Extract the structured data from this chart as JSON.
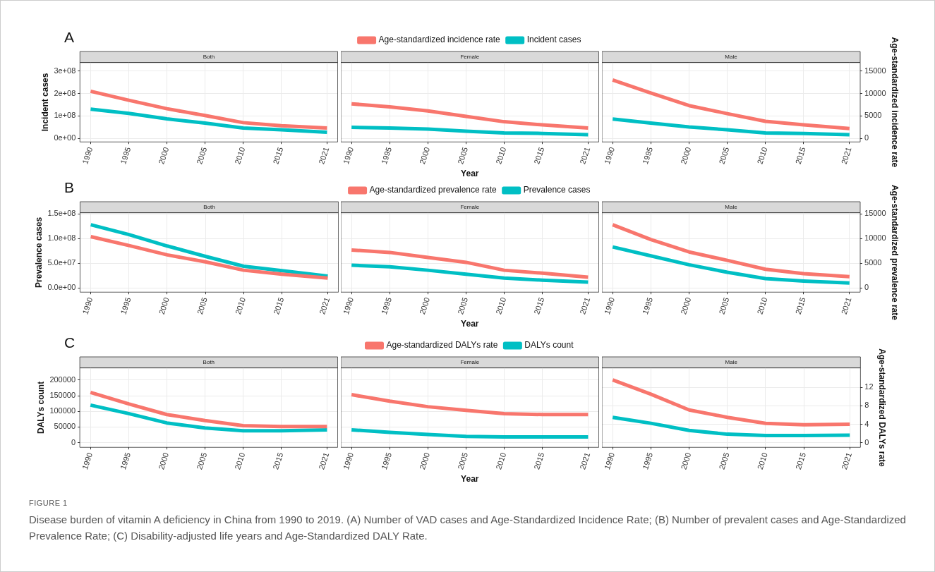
{
  "chart_data": [
    {
      "type": "line",
      "title": "Both",
      "x": [
        1990,
        1995,
        2000,
        2005,
        2010,
        2015,
        2021
      ],
      "xlim": [
        1988.6,
        2022.4
      ],
      "xticks": [
        1990,
        1995,
        2000,
        2005,
        2010,
        2015,
        2021
      ],
      "ylim": [
        -16000000,
        338000000
      ],
      "yticks": [
        {
          "value": 0,
          "label": "0e+00"
        },
        {
          "value": 100000000,
          "label": "1e+08"
        },
        {
          "value": 200000000,
          "label": "2e+08"
        },
        {
          "value": 300000000,
          "label": "3e+08"
        }
      ],
      "y2lim": [
        -800,
        16900
      ],
      "ylabel": "Incident cases",
      "tick_labels": "xy",
      "grid": true,
      "legend": false,
      "marker": "none",
      "line_style": "solid",
      "annotations": [
        "A"
      ],
      "series": [
        {
          "color": "#f8766d",
          "axis": "y2",
          "values": [
            10500,
            8500,
            6600,
            5100,
            3500,
            2800,
            2300
          ]
        },
        {
          "color": "#00bfc4",
          "values": [
            130000000,
            111000000,
            87000000,
            68000000,
            46000000,
            38000000,
            27000000
          ]
        }
      ]
    },
    {
      "type": "line",
      "title": "Female",
      "x": [
        1990,
        1995,
        2000,
        2005,
        2010,
        2015,
        2021
      ],
      "xlim": [
        1988.6,
        2022.4
      ],
      "xticks": [
        1990,
        1995,
        2000,
        2005,
        2010,
        2015,
        2021
      ],
      "ylim": [
        -16000000,
        338000000
      ],
      "yticks": [
        0,
        100000000,
        200000000,
        300000000
      ],
      "y2lim": [
        -800,
        16900
      ],
      "y2ticks": [
        0,
        5000,
        10000,
        15000
      ],
      "xlabel": "Year",
      "tick_labels": "x",
      "grid": true,
      "legend": "top",
      "marker": "none",
      "line_style": "solid",
      "series": [
        {
          "name": "Age-standardized incidence rate",
          "color": "#f8766d",
          "axis": "y2",
          "values": [
            7700,
            7000,
            6100,
            4900,
            3700,
            3000,
            2300
          ]
        },
        {
          "name": "Incident cases",
          "color": "#00bfc4",
          "values": [
            49000000,
            46000000,
            41000000,
            32000000,
            24000000,
            22000000,
            16000000
          ]
        }
      ]
    },
    {
      "type": "line",
      "title": "Male",
      "x": [
        1990,
        1995,
        2000,
        2005,
        2010,
        2015,
        2021
      ],
      "xlim": [
        1988.6,
        2022.4
      ],
      "xticks": [
        1990,
        1995,
        2000,
        2005,
        2010,
        2015,
        2021
      ],
      "ylim": [
        -16000000,
        338000000
      ],
      "y2lim": [
        -800,
        16900
      ],
      "y2ticks": [
        0,
        5000,
        10000,
        15000
      ],
      "y2label": "Age-standardized incidence rate",
      "tick_labels": "xy2",
      "grid": true,
      "legend": false,
      "marker": "none",
      "line_style": "solid",
      "series": [
        {
          "color": "#f8766d",
          "axis": "y2",
          "values": [
            13000,
            10100,
            7300,
            5500,
            3800,
            3000,
            2200
          ]
        },
        {
          "color": "#00bfc4",
          "values": [
            86000000,
            68000000,
            51000000,
            38000000,
            24000000,
            22000000,
            16000000
          ]
        }
      ]
    },
    {
      "type": "line",
      "title": "Both",
      "x": [
        1990,
        1995,
        2000,
        2005,
        2010,
        2015,
        2021
      ],
      "xlim": [
        1988.6,
        2022.4
      ],
      "xticks": [
        1990,
        1995,
        2000,
        2005,
        2010,
        2015,
        2021
      ],
      "ylim": [
        -8400000,
        152300000
      ],
      "yticks": [
        {
          "value": 0,
          "label": "0.0e+00"
        },
        {
          "value": 50000000,
          "label": "5.0e+07"
        },
        {
          "value": 100000000,
          "label": "1.0e+08"
        },
        {
          "value": 150000000,
          "label": "1.5e+08"
        }
      ],
      "y2lim": [
        -840,
        15230
      ],
      "ylabel": "Prevalence cases",
      "tick_labels": "xy",
      "grid": true,
      "legend": false,
      "marker": "none",
      "line_style": "solid",
      "annotations": [
        "B"
      ],
      "series": [
        {
          "color": "#f8766d",
          "axis": "y2",
          "values": [
            10400,
            8600,
            6700,
            5300,
            3600,
            2800,
            2000
          ]
        },
        {
          "color": "#00bfc4",
          "values": [
            128000000,
            108000000,
            85000000,
            64000000,
            44000000,
            35000000,
            24000000
          ]
        }
      ]
    },
    {
      "type": "line",
      "title": "Female",
      "x": [
        1990,
        1995,
        2000,
        2005,
        2010,
        2015,
        2021
      ],
      "xlim": [
        1988.6,
        2022.4
      ],
      "xticks": [
        1990,
        1995,
        2000,
        2005,
        2010,
        2015,
        2021
      ],
      "ylim": [
        -8400000,
        152300000
      ],
      "yticks": [
        0,
        50000000,
        100000000,
        150000000
      ],
      "y2lim": [
        -840,
        15230
      ],
      "y2ticks": [
        0,
        5000,
        10000,
        15000
      ],
      "xlabel": "Year",
      "tick_labels": "x",
      "grid": true,
      "legend": "top",
      "marker": "none",
      "line_style": "solid",
      "series": [
        {
          "name": "Age-standardized prevalence rate",
          "color": "#f8766d",
          "axis": "y2",
          "values": [
            7700,
            7200,
            6200,
            5200,
            3600,
            3000,
            2200
          ]
        },
        {
          "name": "Prevalence cases",
          "color": "#00bfc4",
          "values": [
            46000000,
            43000000,
            36000000,
            28000000,
            20000000,
            16000000,
            12000000
          ]
        }
      ]
    },
    {
      "type": "line",
      "title": "Male",
      "x": [
        1990,
        1995,
        2000,
        2005,
        2010,
        2015,
        2021
      ],
      "xlim": [
        1988.6,
        2022.4
      ],
      "xticks": [
        1990,
        1995,
        2000,
        2005,
        2010,
        2015,
        2021
      ],
      "ylim": [
        -8400000,
        152300000
      ],
      "y2lim": [
        -840,
        15230
      ],
      "y2ticks": [
        0,
        5000,
        10000,
        15000
      ],
      "y2label": "Age-standardized prevalence rate",
      "tick_labels": "xy2",
      "grid": true,
      "legend": false,
      "marker": "none",
      "line_style": "solid",
      "series": [
        {
          "color": "#f8766d",
          "axis": "y2",
          "values": [
            12800,
            9800,
            7300,
            5600,
            3800,
            2900,
            2300
          ]
        },
        {
          "color": "#00bfc4",
          "values": [
            83000000,
            65000000,
            47000000,
            32000000,
            19000000,
            14000000,
            10000000
          ]
        }
      ]
    },
    {
      "type": "line",
      "title": "Both",
      "x": [
        1990,
        1995,
        2000,
        2005,
        2010,
        2015,
        2021
      ],
      "xlim": [
        1988.6,
        2022.4
      ],
      "xticks": [
        1990,
        1995,
        2000,
        2005,
        2010,
        2015,
        2021
      ],
      "ylim": [
        -15000,
        239000
      ],
      "yticks": [
        0,
        50000,
        100000,
        150000,
        200000
      ],
      "y2lim": [
        -1,
        16.2
      ],
      "ylabel": "DALYs count",
      "tick_labels": "xy",
      "grid": true,
      "legend": false,
      "marker": "none",
      "line_style": "solid",
      "annotations": [
        "C"
      ],
      "series": [
        {
          "color": "#f8766d",
          "axis": "y2",
          "values": [
            10.9,
            8.4,
            6.1,
            4.8,
            3.7,
            3.5,
            3.5
          ]
        },
        {
          "color": "#00bfc4",
          "values": [
            120000,
            93000,
            63000,
            47000,
            38000,
            38000,
            41000
          ]
        }
      ]
    },
    {
      "type": "line",
      "title": "Female",
      "x": [
        1990,
        1995,
        2000,
        2005,
        2010,
        2015,
        2021
      ],
      "xlim": [
        1988.6,
        2022.4
      ],
      "xticks": [
        1990,
        1995,
        2000,
        2005,
        2010,
        2015,
        2021
      ],
      "ylim": [
        -15000,
        239000
      ],
      "yticks": [
        0,
        50000,
        100000,
        150000,
        200000
      ],
      "y2lim": [
        -1,
        16.2
      ],
      "y2ticks": [
        0,
        4,
        8,
        12
      ],
      "xlabel": "Year",
      "tick_labels": "x",
      "grid": true,
      "legend": "top",
      "marker": "none",
      "line_style": "solid",
      "series": [
        {
          "name": "Age-standardized DALYs rate",
          "color": "#f8766d",
          "axis": "y2",
          "values": [
            10.4,
            9.0,
            7.8,
            7.0,
            6.3,
            6.1,
            6.1
          ]
        },
        {
          "name": "DALYs count",
          "color": "#00bfc4",
          "values": [
            41000,
            33000,
            26000,
            20000,
            18000,
            18000,
            18000
          ]
        }
      ]
    },
    {
      "type": "line",
      "title": "Male",
      "x": [
        1990,
        1995,
        2000,
        2005,
        2010,
        2015,
        2021
      ],
      "xlim": [
        1988.6,
        2022.4
      ],
      "xticks": [
        1990,
        1995,
        2000,
        2005,
        2010,
        2015,
        2021
      ],
      "ylim": [
        -15000,
        239000
      ],
      "y2lim": [
        -1,
        16.2
      ],
      "y2ticks": [
        0,
        4,
        8,
        12
      ],
      "y2label": "Age-standardized DALYs rate",
      "tick_labels": "xy2",
      "grid": true,
      "legend": false,
      "marker": "none",
      "line_style": "solid",
      "annotations": [
        "FIGURE 1",
        "Disease burden of vitamin A deficiency in China from 1990 to 2019. (A) Number of VAD cases and Age-Standardized Incidence Rate; (B) Number of prevalent cases and Age-Standardized Prevalence Rate; (C) Disability-adjusted life years and Age-Standardized DALY Rate."
      ],
      "series": [
        {
          "color": "#f8766d",
          "axis": "y2",
          "values": [
            13.6,
            10.5,
            7.1,
            5.5,
            4.2,
            3.9,
            4.0
          ]
        },
        {
          "color": "#00bfc4",
          "values": [
            81000,
            62000,
            39000,
            27000,
            23000,
            23000,
            24000
          ]
        }
      ]
    }
  ]
}
